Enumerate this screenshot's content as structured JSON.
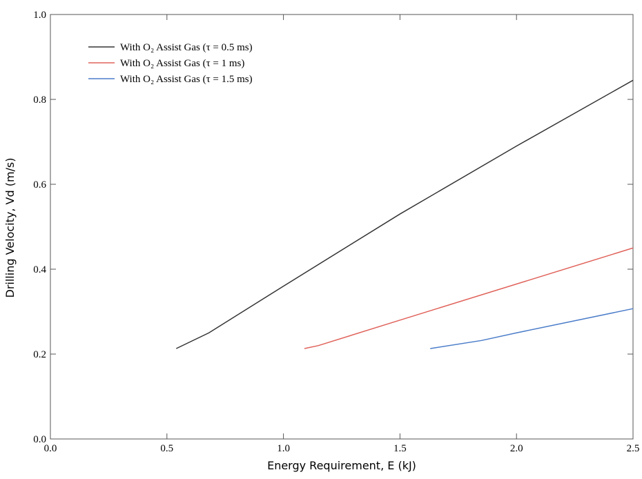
{
  "chart_data": {
    "type": "line",
    "x_label": "Energy Requirement, E (kJ)",
    "y_label": "Drilling Velocity, Vd (m/s)",
    "xlim": [
      0,
      2.5
    ],
    "xticks": [
      {
        "value": 0,
        "label": "0.0"
      },
      {
        "value": 0.5,
        "label": "0.5"
      },
      {
        "value": 1,
        "label": "1.0"
      },
      {
        "value": 1.5,
        "label": "1.5"
      },
      {
        "value": 2,
        "label": "2.0"
      },
      {
        "value": 2.5,
        "label": "2.5"
      }
    ],
    "ylim": [
      0,
      1
    ],
    "yticks": [
      {
        "value": 0,
        "label": "0.0"
      },
      {
        "value": 0.2,
        "label": "0.2"
      },
      {
        "value": 0.4,
        "label": "0.4"
      },
      {
        "value": 0.6,
        "label": "0.6"
      },
      {
        "value": 0.8,
        "label": "0.8"
      },
      {
        "value": 1,
        "label": "1.0"
      }
    ],
    "grid": false,
    "legend": "upper left",
    "series": [
      {
        "name": "With O₂ Assist Gas (τ = 0.5 ms)",
        "color": "#333333",
        "x": [
          0.54,
          0.68,
          1.0,
          1.5,
          2.0,
          2.5
        ],
        "values": [
          0.213,
          0.25,
          0.36,
          0.53,
          0.69,
          0.845
        ]
      },
      {
        "name": "With O₂ Assist Gas (τ = 1 ms)",
        "color": "#e0625a",
        "x": [
          1.09,
          1.15,
          1.5,
          2.0,
          2.5
        ],
        "values": [
          0.213,
          0.22,
          0.28,
          0.365,
          0.45
        ]
      },
      {
        "name": "With O₂ Assist Gas (τ = 1.5 ms)",
        "color": "#4a7cc9",
        "x": [
          1.63,
          1.85,
          2.0,
          2.5
        ],
        "values": [
          0.213,
          0.232,
          0.25,
          0.307
        ]
      }
    ]
  }
}
